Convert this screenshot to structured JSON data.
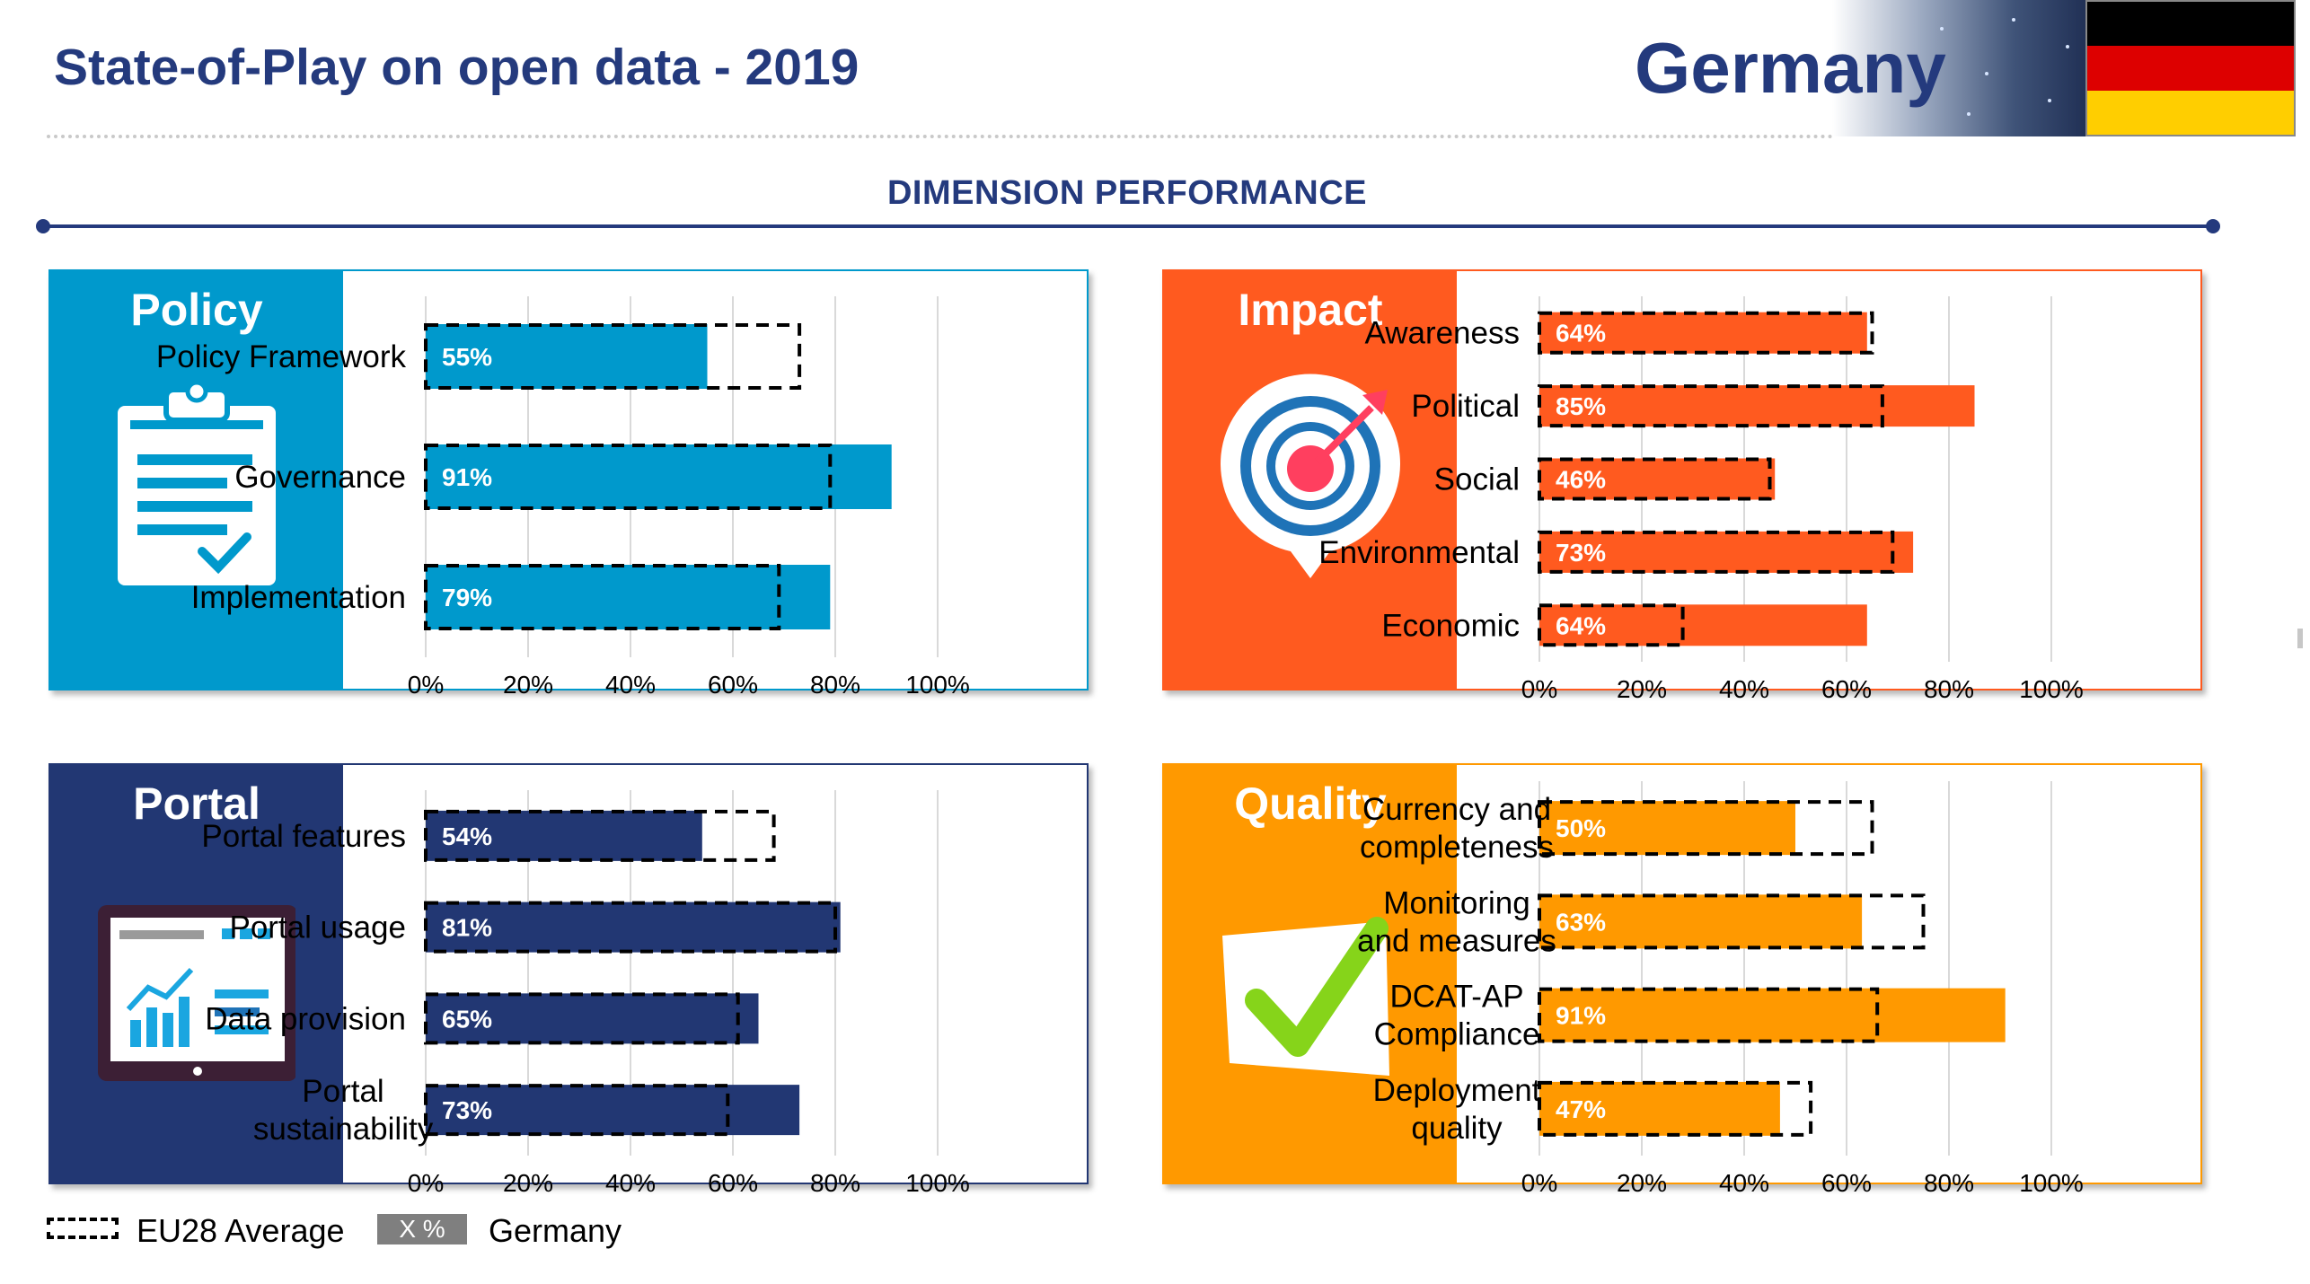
{
  "header": {
    "title": "State-of-Play on open data - 2019",
    "country": "Germany",
    "flag_colors": [
      "#000000",
      "#DD0000",
      "#FFCE00"
    ]
  },
  "section_title": "DIMENSION PERFORMANCE",
  "legend": {
    "average_label": "EU28 Average",
    "swatch_label": "X %",
    "country_label": "Germany"
  },
  "chart_data": [
    {
      "type": "bar",
      "orientation": "horizontal",
      "panel_title": "Policy",
      "icon": "clipboard-check-icon",
      "color": "#0099CC",
      "categories": [
        "Policy Framework",
        "Governance",
        "Implementation"
      ],
      "series": [
        {
          "name": "Germany",
          "values": [
            55,
            91,
            79
          ]
        },
        {
          "name": "EU28 Average",
          "values": [
            73,
            79,
            69
          ]
        }
      ],
      "value_labels": [
        "55%",
        "91%",
        "79%"
      ],
      "xlim": [
        0,
        100
      ],
      "xticks": [
        "0%",
        "20%",
        "40%",
        "60%",
        "80%",
        "100%"
      ]
    },
    {
      "type": "bar",
      "orientation": "horizontal",
      "panel_title": "Impact",
      "icon": "target-icon",
      "color": "#FF5A1F",
      "categories": [
        "Awareness",
        "Political",
        "Social",
        "Environmental",
        "Economic"
      ],
      "series": [
        {
          "name": "Germany",
          "values": [
            64,
            85,
            46,
            73,
            64
          ]
        },
        {
          "name": "EU28 Average",
          "values": [
            65,
            67,
            45,
            69,
            28
          ]
        }
      ],
      "value_labels": [
        "64%",
        "85%",
        "46%",
        "73%",
        "64%"
      ],
      "xlim": [
        0,
        100
      ],
      "xticks": [
        "0%",
        "20%",
        "40%",
        "60%",
        "80%",
        "100%"
      ]
    },
    {
      "type": "bar",
      "orientation": "horizontal",
      "panel_title": "Portal",
      "icon": "dashboard-monitor-icon",
      "color": "#223773",
      "categories": [
        "Portal features",
        "Portal usage",
        "Data provision",
        "Portal sustainability"
      ],
      "series": [
        {
          "name": "Germany",
          "values": [
            54,
            81,
            65,
            73
          ]
        },
        {
          "name": "EU28 Average",
          "values": [
            68,
            80,
            61,
            59
          ]
        }
      ],
      "value_labels": [
        "54%",
        "81%",
        "65%",
        "73%"
      ],
      "xlim": [
        0,
        100
      ],
      "xticks": [
        "0%",
        "20%",
        "40%",
        "60%",
        "80%",
        "100%"
      ]
    },
    {
      "type": "bar",
      "orientation": "horizontal",
      "panel_title": "Quality",
      "icon": "checkmark-icon",
      "color": "#FF9900",
      "categories": [
        "Currency and completeness",
        "Monitoring and measures",
        "DCAT-AP Compliance",
        "Deployment quality"
      ],
      "series": [
        {
          "name": "Germany",
          "values": [
            50,
            63,
            91,
            47
          ]
        },
        {
          "name": "EU28 Average",
          "values": [
            65,
            75,
            66,
            53
          ]
        }
      ],
      "value_labels": [
        "50%",
        "63%",
        "91%",
        "47%"
      ],
      "xlim": [
        0,
        100
      ],
      "xticks": [
        "0%",
        "20%",
        "40%",
        "60%",
        "80%",
        "100%"
      ]
    }
  ]
}
